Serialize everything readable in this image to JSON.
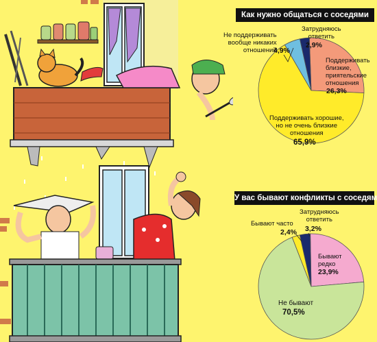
{
  "charts_colors": {
    "light_green": "#c9e59a",
    "yellow": "#ffeb2a",
    "salmon": "#f49a7a",
    "pink": "#f5aacf",
    "blue": "#6fbfe0",
    "navy": "#1a2a6c"
  },
  "chart_data": [
    {
      "type": "pie",
      "title": "Как нужно общаться с соседями",
      "slices": [
        {
          "label": "Поддерживать близкие, приятельские отношения",
          "value": 26.3,
          "value_text": "26,3%",
          "color": "#f49a7a"
        },
        {
          "label": "Поддерживать хорошие, но не очень близкие отношения",
          "value": 65.9,
          "value_text": "65,9%",
          "color": "#ffeb2a"
        },
        {
          "label": "Не поддерживать вообще никаких отношений",
          "value": 4.9,
          "value_text": "4,9%",
          "color": "#6fbfe0"
        },
        {
          "label": "Затрудняюсь ответить",
          "value": 2.9,
          "value_text": "2,9%",
          "color": "#1a2a6c"
        }
      ]
    },
    {
      "type": "pie",
      "title": "У вас бывают конфликты с соседями?",
      "slices": [
        {
          "label": "Бывают редко",
          "value": 23.9,
          "value_text": "23,9%",
          "color": "#f5aacf"
        },
        {
          "label": "Не бывают",
          "value": 70.5,
          "value_text": "70,5%",
          "color": "#c9e59a"
        },
        {
          "label": "Бывают часто",
          "value": 2.4,
          "value_text": "2,4%",
          "color": "#ffeb2a"
        },
        {
          "label": "Затрудняюсь ответить",
          "value": 3.2,
          "value_text": "3,2%",
          "color": "#1a2a6c"
        }
      ]
    }
  ],
  "labels": {
    "c1_close_1": "Поддерживать",
    "c1_close_2": "близкие,",
    "c1_close_3": "приятельские",
    "c1_close_4": "отношения",
    "c1_good_1": "Поддерживать хорошие,",
    "c1_good_2": "но не очень близкие",
    "c1_good_3": "отношения",
    "c1_none_1": "Не поддерживать",
    "c1_none_2": "вообще никаких",
    "c1_none_3": "отношений",
    "c1_hard_1": "Затрудняюсь",
    "c1_hard_2": "ответить",
    "c2_rare_1": "Бывают",
    "c2_rare_2": "редко",
    "c2_never": "Не бывают",
    "c2_often": "Бывают часто",
    "c2_hard_1": "Затрудняюсь",
    "c2_hard_2": "ответить"
  }
}
